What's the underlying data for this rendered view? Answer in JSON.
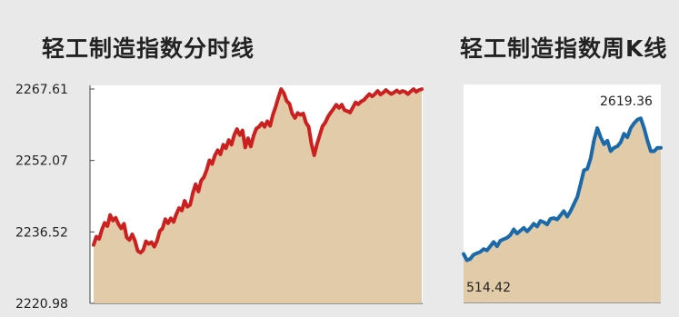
{
  "chart_data": [
    {
      "type": "area",
      "title": "轻工制造指数分时线",
      "ylim": [
        2220.98,
        2267.61
      ],
      "yticks": [
        "2267.61",
        "2252.07",
        "2236.52",
        "2220.98"
      ],
      "grid": false,
      "colors": {
        "line": "#cc2020",
        "fill": "#e2cba8",
        "plot_bg": "#ffffff"
      },
      "x": [
        0,
        1,
        2,
        3,
        4,
        5,
        6,
        7,
        8,
        9,
        10,
        11,
        12,
        13,
        14,
        15,
        16,
        17,
        18,
        19,
        20,
        21,
        22,
        23,
        24,
        25,
        26,
        27,
        28,
        29,
        30,
        31,
        32,
        33,
        34,
        35,
        36,
        37,
        38,
        39,
        40,
        41,
        42,
        43,
        44,
        45,
        46,
        47,
        48,
        49,
        50,
        51,
        52,
        53,
        54,
        55,
        56,
        57,
        58,
        59,
        60,
        61,
        62,
        63,
        64,
        65,
        66,
        67,
        68,
        69,
        70,
        71,
        72,
        73,
        74,
        75,
        76,
        77,
        78,
        79,
        80,
        81,
        82,
        83,
        84,
        85,
        86,
        87,
        88,
        89,
        90,
        91,
        92,
        93,
        94,
        95,
        96,
        97,
        98,
        99,
        100,
        101,
        102,
        103,
        104,
        105,
        106,
        107,
        108,
        109,
        110,
        111,
        112,
        113,
        114,
        115,
        116,
        117,
        118,
        119
      ],
      "values": [
        2233.7,
        2235.5,
        2235.0,
        2237.0,
        2238.5,
        2237.8,
        2240.2,
        2239.0,
        2239.6,
        2238.2,
        2237.3,
        2238.3,
        2235.3,
        2234.8,
        2236.0,
        2234.6,
        2232.4,
        2232.0,
        2232.6,
        2234.5,
        2233.9,
        2234.3,
        2233.3,
        2234.6,
        2236.7,
        2237.3,
        2239.3,
        2238.4,
        2239.5,
        2238.7,
        2240.4,
        2241.7,
        2241.2,
        2243.3,
        2242.0,
        2242.4,
        2245.0,
        2246.9,
        2245.3,
        2247.7,
        2248.4,
        2250.0,
        2252.1,
        2251.3,
        2253.2,
        2254.3,
        2253.4,
        2255.5,
        2254.7,
        2256.5,
        2255.5,
        2257.6,
        2258.9,
        2257.6,
        2258.6,
        2254.9,
        2256.9,
        2255.1,
        2257.4,
        2259.0,
        2259.4,
        2260.2,
        2259.4,
        2260.6,
        2259.6,
        2262.0,
        2263.7,
        2265.8,
        2267.6,
        2266.7,
        2265.0,
        2264.4,
        2262.3,
        2261.3,
        2262.4,
        2262.0,
        2262.3,
        2260.3,
        2259.4,
        2255.6,
        2253.2,
        2255.6,
        2257.6,
        2259.5,
        2260.3,
        2261.6,
        2262.5,
        2263.3,
        2264.2,
        2263.5,
        2264.2,
        2263.0,
        2262.8,
        2262.5,
        2263.6,
        2264.7,
        2264.3,
        2264.9,
        2265.2,
        2265.9,
        2266.5,
        2266.0,
        2266.5,
        2267.2,
        2266.4,
        2266.8,
        2267.4,
        2266.9,
        2266.5,
        2266.9,
        2267.3,
        2266.8,
        2267.2,
        2267.0,
        2266.5,
        2267.1,
        2267.6,
        2267.0,
        2267.4,
        2267.6
      ]
    },
    {
      "type": "area",
      "title": "轻工制造指数周K线",
      "ylim": [
        0,
        3100
      ],
      "annotations": [
        {
          "text": "2619.36",
          "value": 2619.36
        },
        {
          "text": "514.42",
          "value": 514.42
        }
      ],
      "grid": false,
      "colors": {
        "line": "#1a6aab",
        "fill": "#e2cba8",
        "plot_bg": "#ffffff"
      },
      "x": [
        0,
        1,
        2,
        3,
        4,
        5,
        6,
        7,
        8,
        9,
        10,
        11,
        12,
        13,
        14,
        15,
        16,
        17,
        18,
        19,
        20,
        21,
        22,
        23,
        24,
        25,
        26,
        27,
        28,
        29,
        30,
        31,
        32,
        33,
        34,
        35,
        36,
        37,
        38,
        39,
        40,
        41,
        42,
        43,
        44,
        45,
        46,
        47,
        48,
        49,
        50,
        51,
        52,
        53,
        54,
        55,
        56,
        57,
        58,
        59
      ],
      "values": [
        690,
        600,
        620,
        680,
        700,
        720,
        760,
        740,
        800,
        860,
        800,
        880,
        900,
        920,
        960,
        1040,
        980,
        1020,
        1060,
        1010,
        1060,
        1120,
        1080,
        1160,
        1140,
        1110,
        1190,
        1200,
        1180,
        1240,
        1300,
        1220,
        1300,
        1400,
        1500,
        1680,
        1880,
        1900,
        2050,
        2300,
        2480,
        2350,
        2250,
        2300,
        2150,
        2200,
        2220,
        2280,
        2400,
        2350,
        2480,
        2550,
        2600,
        2619,
        2480,
        2300,
        2150,
        2150,
        2200,
        2200
      ]
    }
  ]
}
